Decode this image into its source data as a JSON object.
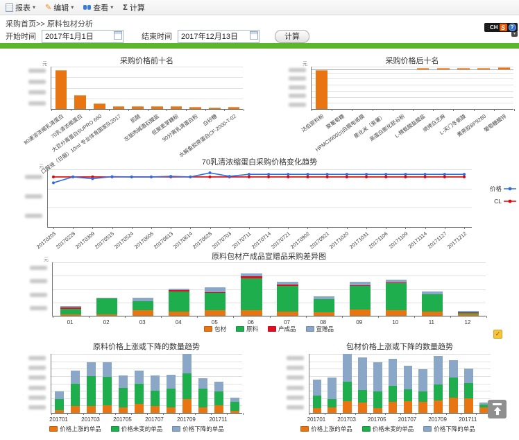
{
  "toolbar": {
    "items": [
      {
        "icon": "report-icon",
        "label": "报表"
      },
      {
        "icon": "pencil-icon",
        "label": "编辑"
      },
      {
        "icon": "binoculars-icon",
        "label": "查看"
      },
      {
        "icon": "sigma-icon",
        "label": "计算"
      }
    ],
    "sigma": "Σ"
  },
  "breadcrumb": {
    "home": "采购首页",
    "separator": ">>",
    "current": "原料包材分析"
  },
  "filters": {
    "start_label": "开始时间",
    "start_value": "2017年1月1日",
    "end_label": "结束时间",
    "end_value": "2017年12月13日",
    "calc_label": "计算"
  },
  "widget": {
    "lang": "CH",
    "logo": "S",
    "help": "?"
  },
  "colors": {
    "accent_green_bar": "#5cb52b",
    "bar_orange": "#e87511",
    "stack_green": "#1fae4e",
    "stack_red": "#e30f20",
    "stack_gray_blue": "#8ba7c7",
    "line_blue": "#2e6be6",
    "line_red": "#e60000"
  },
  "chart_data": [
    {
      "type": "bar",
      "title": "采购价格前十名",
      "unit": "元",
      "y_axis": "redacted-blurred-labels",
      "categories": [
        "80速溶浓缩乳清蛋白",
        "70乳清浓缩蛋白",
        "大豆分离蛋白SUPRO 660",
        "口服液（日服）10ml 专业体育国家队2017",
        "肌酸",
        "左旋肉碱酒石酸盐",
        "低聚麦芽糖粉",
        "90分离乳清蛋白粉",
        "白砂糖",
        "水解鱼胶原蛋白CF-2000-T-02"
      ],
      "values_relative_pct": [
        92,
        33,
        13,
        6,
        6,
        6,
        6,
        5,
        4,
        5
      ],
      "bar_color": "#e87511"
    },
    {
      "type": "bar",
      "title": "采购价格后十名",
      "unit": "元",
      "y_axis": "redacted-blurred-labels",
      "baseline_pct": 92,
      "categories": [
        "达伯原料粉",
        "聚葡萄糖",
        "HPMC3900(s)白膜电烙膜",
        "膨化米（紫薯）",
        "高蛋白膨化胚谷粉",
        "L-精氨酸盐酸盐",
        "烘烤白芝麻",
        "L-天门冬氨酸",
        "黄原胶BP9280",
        "葡萄糖酸锌"
      ],
      "values_relative_pct": [
        -92,
        0,
        0,
        0,
        0,
        4,
        4.5,
        5,
        5.5,
        6
      ],
      "bar_color": "#e87511"
    },
    {
      "type": "line",
      "title": "70乳清浓缩蛋白采购价格变化趋势",
      "unit": "元",
      "y_axis": "redacted-blurred-labels",
      "legend_position": "right",
      "x": [
        "20170203",
        "20170228",
        "20170309",
        "20170515",
        "20170524",
        "20170605",
        "20170613",
        "20170614",
        "20170628",
        "20170703",
        "20170711",
        "20170714",
        "20170721",
        "20170902",
        "20170921",
        "20171020",
        "20171031",
        "20171106",
        "20171109",
        "20171114",
        "20171127",
        "20171212"
      ],
      "series": [
        {
          "name": "价格",
          "color": "#2e6be6",
          "y_pct_from_top": [
            23,
            13,
            16,
            12.5,
            13,
            13,
            12,
            13,
            6,
            12,
            8.5,
            8.5,
            8.5,
            8.5,
            8.5,
            8.5,
            8.5,
            8.5,
            8.5,
            8.5,
            8.5,
            8.5
          ]
        },
        {
          "name": "CL",
          "color": "#e60000",
          "y_pct_from_top": [
            13,
            13,
            13,
            13,
            13,
            13,
            13,
            13,
            13,
            13,
            13,
            13,
            13,
            13,
            13,
            13,
            13,
            13,
            13,
            13,
            13,
            13
          ]
        }
      ]
    },
    {
      "type": "stacked_bar",
      "title": "原料包材产成品宣赠品采购差异图",
      "unit": "元",
      "y_axis": "redacted-blurred-labels",
      "legend_position": "bottom",
      "categories": [
        "01",
        "02",
        "03",
        "04",
        "05",
        "06",
        "07",
        "08",
        "09",
        "10",
        "11",
        "12"
      ],
      "series": [
        {
          "name": "包材",
          "color": "#e87511",
          "values_relative_pct": [
            3,
            2,
            10,
            8,
            10,
            11,
            8,
            7,
            12,
            11,
            8,
            2
          ]
        },
        {
          "name": "原料",
          "color": "#1fae4e",
          "values_relative_pct": [
            10,
            30,
            17,
            38,
            33,
            59,
            48,
            24,
            44,
            50,
            32,
            3
          ]
        },
        {
          "name": "产成品",
          "color": "#e30f20",
          "values_relative_pct": [
            3,
            0.8,
            0.8,
            2,
            0.8,
            4,
            3,
            0.8,
            0.8,
            2,
            0.8,
            1
          ]
        },
        {
          "name": "宣赠品",
          "color": "#8ba7c7",
          "values_relative_pct": [
            2,
            1,
            6,
            3,
            10,
            5,
            5,
            4,
            7,
            4,
            5,
            3
          ]
        }
      ]
    },
    {
      "type": "stacked_bar",
      "title": "原料价格上涨或下降的数量趋势",
      "y_axis": "redacted-blurred-labels",
      "legend_position": "bottom",
      "xlabel_every": 2,
      "categories": [
        "201701",
        "201702",
        "201703",
        "201704",
        "201705",
        "201706",
        "201707",
        "201708",
        "201709",
        "201710",
        "201711",
        "201712"
      ],
      "series": [
        {
          "name": "价格上涨的单品",
          "color": "#e87511",
          "values_relative_pct": [
            5,
            12,
            12,
            13,
            9,
            15,
            12,
            9,
            23,
            10,
            13,
            4
          ]
        },
        {
          "name": "价格未变的单品",
          "color": "#1fae4e",
          "values_relative_pct": [
            19,
            38,
            50,
            48,
            33,
            34,
            26,
            32,
            44,
            31,
            24,
            15
          ]
        },
        {
          "name": "价格下降的单品",
          "color": "#8ba7c7",
          "values_relative_pct": [
            12,
            22,
            24,
            25,
            22,
            23,
            25,
            24,
            33,
            18,
            16,
            7
          ]
        }
      ]
    },
    {
      "type": "stacked_bar",
      "title": "包材价格上涨或下降的数量趋势",
      "y_axis": "redacted-blurred-labels",
      "legend_position": "bottom",
      "xlabel_every": 2,
      "categories": [
        "201701",
        "201702",
        "201703",
        "201704",
        "201705",
        "201706",
        "201707",
        "201708",
        "201709",
        "201710",
        "201711",
        "201712"
      ],
      "series": [
        {
          "name": "价格上涨的单品",
          "color": "#e87511",
          "values_relative_pct": [
            8,
            9,
            20,
            18,
            8,
            19,
            20,
            19,
            21,
            26,
            25,
            10
          ]
        },
        {
          "name": "价格未变的单品",
          "color": "#1fae4e",
          "values_relative_pct": [
            21,
            15,
            33,
            21,
            28,
            27,
            20,
            17,
            27,
            34,
            26,
            4
          ]
        },
        {
          "name": "价格下降的单品",
          "color": "#8ba7c7",
          "values_relative_pct": [
            27,
            36,
            47,
            55,
            50,
            46,
            40,
            38,
            49,
            30,
            24,
            4
          ]
        }
      ]
    }
  ]
}
